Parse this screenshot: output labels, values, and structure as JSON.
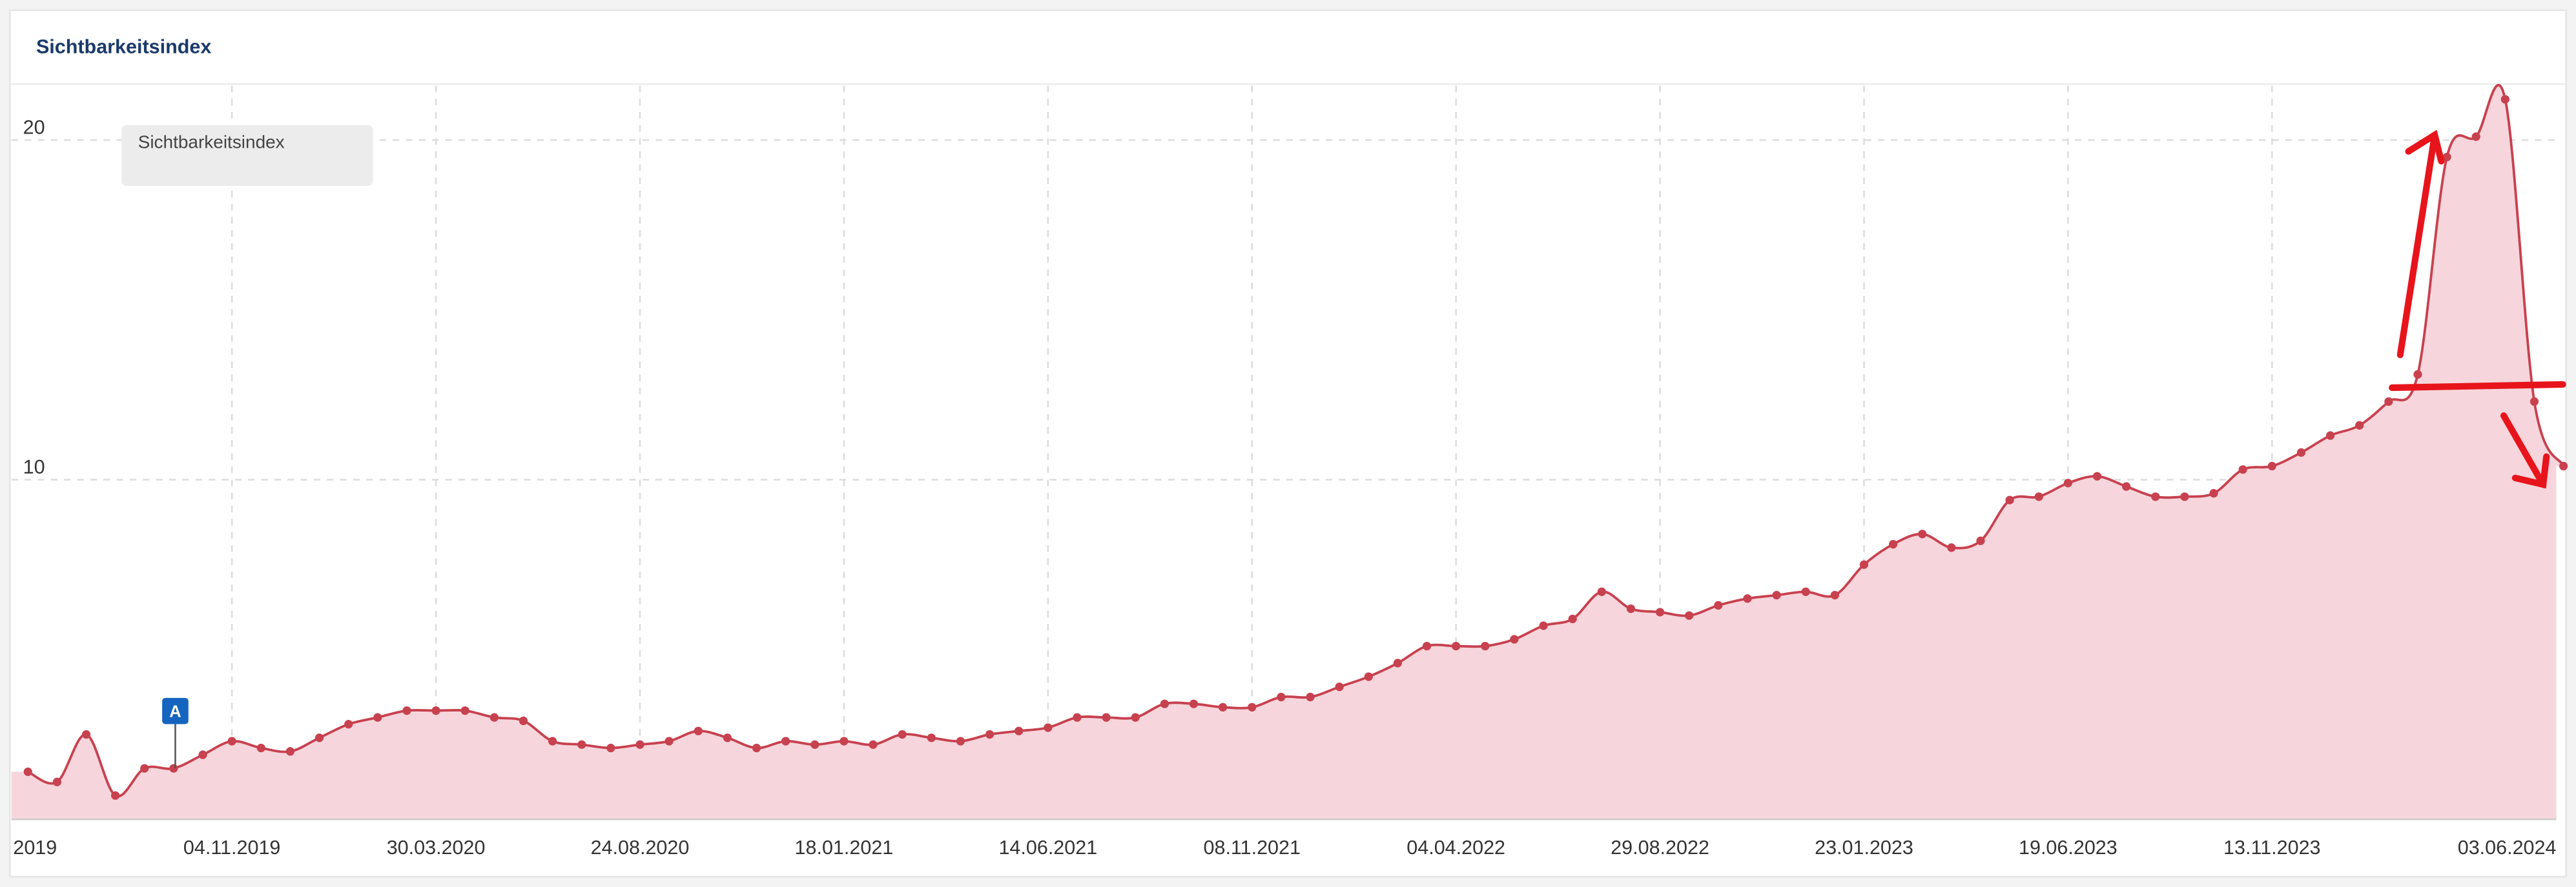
{
  "chart_data": {
    "type": "area",
    "title": "Sichtbarkeitsindex",
    "categories": [
      "2019",
      null,
      null,
      null,
      null,
      null,
      null,
      "04.11.2019",
      null,
      null,
      null,
      null,
      null,
      null,
      "30.03.2020",
      null,
      null,
      null,
      null,
      null,
      null,
      "24.08.2020",
      null,
      null,
      null,
      null,
      null,
      null,
      "18.01.2021",
      null,
      null,
      null,
      null,
      null,
      null,
      "14.06.2021",
      null,
      null,
      null,
      null,
      null,
      null,
      "08.11.2021",
      null,
      null,
      null,
      null,
      null,
      null,
      "04.04.2022",
      null,
      null,
      null,
      null,
      null,
      null,
      "29.08.2022",
      null,
      null,
      null,
      null,
      null,
      null,
      "23.01.2023",
      null,
      null,
      null,
      null,
      null,
      null,
      "19.06.2023",
      null,
      null,
      null,
      null,
      null,
      null,
      "13.11.2023",
      null,
      null,
      null,
      null,
      null,
      null,
      null,
      null,
      null,
      "03.06.2024"
    ],
    "series": [
      {
        "name": "Sichtbarkeitsindex",
        "color": "#c8414f",
        "fill": "#f6d6dc",
        "values": [
          1.4,
          1.1,
          2.5,
          0.7,
          1.5,
          1.5,
          1.9,
          2.3,
          2.1,
          2.0,
          2.4,
          2.8,
          3.0,
          3.2,
          3.2,
          3.2,
          3.0,
          2.9,
          2.3,
          2.2,
          2.1,
          2.2,
          2.3,
          2.6,
          2.4,
          2.1,
          2.3,
          2.2,
          2.3,
          2.2,
          2.5,
          2.4,
          2.3,
          2.5,
          2.6,
          2.7,
          3.0,
          3.0,
          3.0,
          3.4,
          3.4,
          3.3,
          3.3,
          3.6,
          3.6,
          3.9,
          4.2,
          4.6,
          5.1,
          5.1,
          5.1,
          5.3,
          5.7,
          5.9,
          6.7,
          6.2,
          6.1,
          6.0,
          6.3,
          6.5,
          6.6,
          6.7,
          6.6,
          7.5,
          8.1,
          8.4,
          8.0,
          8.2,
          9.4,
          9.5,
          9.9,
          10.1,
          9.8,
          9.5,
          9.5,
          9.6,
          10.3,
          10.4,
          10.8,
          11.3,
          11.6,
          12.3,
          13.1,
          19.5,
          20.1,
          21.2,
          12.3,
          10.4
        ]
      }
    ],
    "ylim": [
      0,
      21.6
    ],
    "yticks": [
      10,
      20
    ],
    "grid": true,
    "annotations": [
      {
        "label": "A",
        "index": 5
      }
    ]
  }
}
